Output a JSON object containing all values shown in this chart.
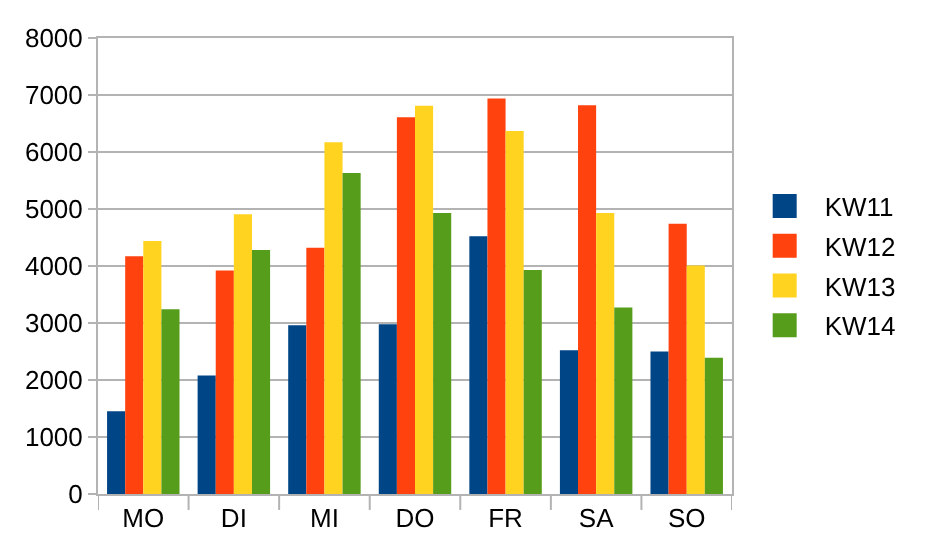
{
  "chart_data": {
    "type": "bar",
    "categories": [
      "MO",
      "DI",
      "MI",
      "DO",
      "FR",
      "SA",
      "SO"
    ],
    "series": [
      {
        "name": "KW11",
        "color": "#004586",
        "values": [
          1450,
          2080,
          2960,
          2980,
          4520,
          2520,
          2500
        ]
      },
      {
        "name": "KW12",
        "color": "#ff420e",
        "values": [
          4170,
          3920,
          4320,
          6610,
          6940,
          6820,
          4740
        ]
      },
      {
        "name": "KW13",
        "color": "#ffd320",
        "values": [
          4440,
          4910,
          6170,
          6810,
          6370,
          4930,
          4010
        ]
      },
      {
        "name": "KW14",
        "color": "#579d1c",
        "values": [
          3240,
          4280,
          5630,
          4930,
          3930,
          3270,
          2390
        ]
      }
    ],
    "ylim": [
      0,
      8000
    ],
    "yticks": [
      0,
      1000,
      2000,
      3000,
      4000,
      5000,
      6000,
      7000,
      8000
    ],
    "grid": "y",
    "legend": "right"
  }
}
